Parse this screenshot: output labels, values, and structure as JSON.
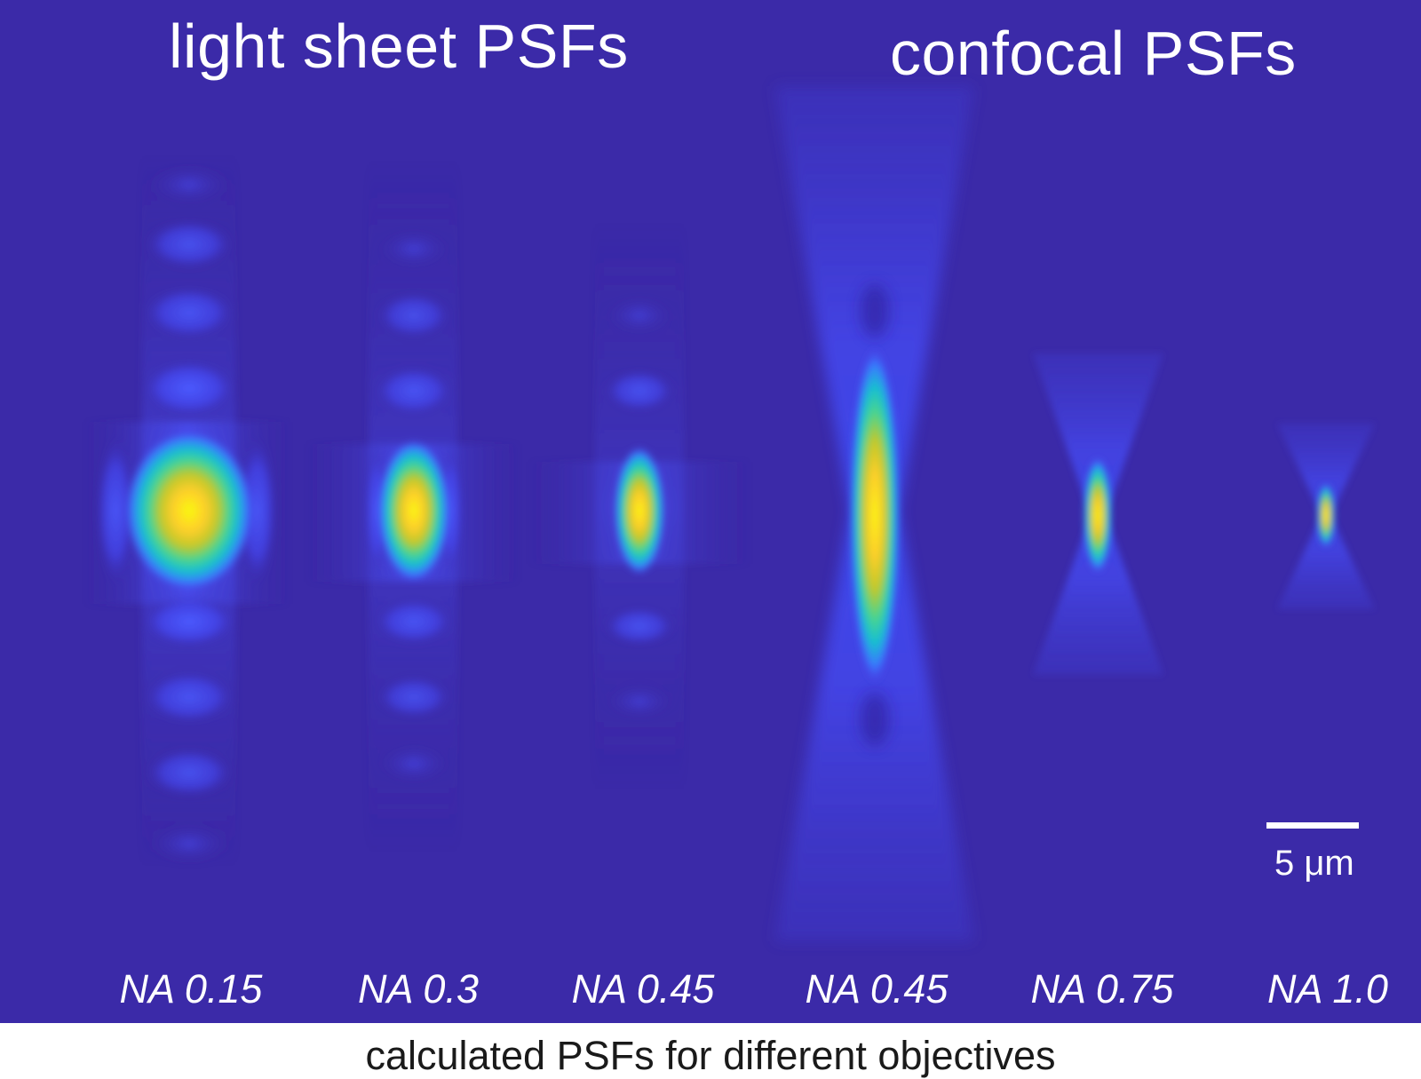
{
  "headings": {
    "light_sheet": "light sheet PSFs",
    "confocal": "confocal PSFs"
  },
  "na_labels": [
    "NA 0.15",
    "NA 0.3",
    "NA 0.45",
    "NA 0.45",
    "NA 0.75",
    "NA 1.0"
  ],
  "scale_bar": {
    "label": "5 μm"
  },
  "caption": "calculated PSFs for different objectives",
  "colors": {
    "background": "#3b2aa8",
    "colormap": [
      "#3b2aa8",
      "#4a3ee8",
      "#3a78ff",
      "#17bfd0",
      "#48d490",
      "#c2c82a",
      "#ffcf2a",
      "#f8f90f"
    ]
  }
}
